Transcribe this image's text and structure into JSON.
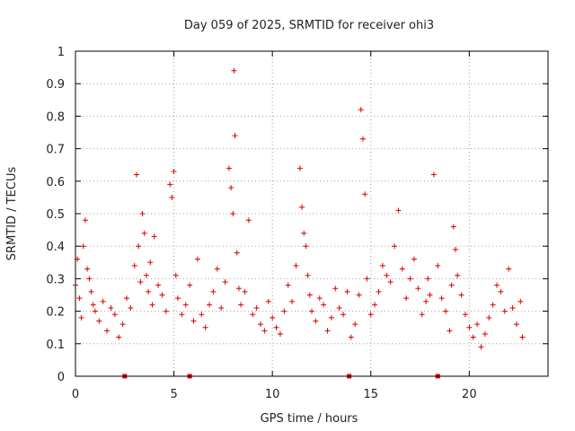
{
  "chart_data": {
    "type": "scatter",
    "title": "Day 059 of 2025, SRMTID for receiver ohi3",
    "xlabel": "GPS time / hours",
    "ylabel": "SRMTID / TECUs",
    "xlim": [
      0,
      24
    ],
    "ylim": [
      0,
      1
    ],
    "xticks": [
      0,
      5,
      10,
      15,
      20
    ],
    "xtick_labels": [
      "0",
      "5",
      "10",
      "15",
      "20"
    ],
    "yticks": [
      0,
      0.1,
      0.2,
      0.3,
      0.4,
      0.5,
      0.6,
      0.7,
      0.8,
      0.9,
      1
    ],
    "ytick_labels": [
      "0",
      "0.1",
      "0.2",
      "0.3",
      "0.4",
      "0.5",
      "0.6",
      "0.7",
      "0.8",
      "0.9",
      "1"
    ],
    "grid": true,
    "marker_color": "#dd0000",
    "series": [
      {
        "name": "SRMTID",
        "marker": "plus",
        "x": [
          0.0,
          0.1,
          0.2,
          0.3,
          0.4,
          0.5,
          0.6,
          0.7,
          0.8,
          0.9,
          1.0,
          1.2,
          1.4,
          1.6,
          1.8,
          2.0,
          2.2,
          2.4,
          2.6,
          2.8,
          3.0,
          3.1,
          3.2,
          3.3,
          3.4,
          3.5,
          3.6,
          3.7,
          3.8,
          3.9,
          4.0,
          4.2,
          4.4,
          4.6,
          4.8,
          4.9,
          5.0,
          5.1,
          5.2,
          5.4,
          5.6,
          5.8,
          6.0,
          6.2,
          6.4,
          6.6,
          6.8,
          7.0,
          7.2,
          7.4,
          7.6,
          7.8,
          7.9,
          8.0,
          8.05,
          8.1,
          8.2,
          8.3,
          8.4,
          8.6,
          8.8,
          9.0,
          9.2,
          9.4,
          9.6,
          9.8,
          10.0,
          10.2,
          10.4,
          10.6,
          10.8,
          11.0,
          11.2,
          11.4,
          11.5,
          11.6,
          11.7,
          11.8,
          11.9,
          12.0,
          12.2,
          12.4,
          12.6,
          12.8,
          13.0,
          13.2,
          13.4,
          13.6,
          13.8,
          14.0,
          14.2,
          14.4,
          14.5,
          14.6,
          14.7,
          14.8,
          15.0,
          15.2,
          15.4,
          15.6,
          15.8,
          16.0,
          16.2,
          16.4,
          16.6,
          16.8,
          17.0,
          17.2,
          17.4,
          17.6,
          17.8,
          17.9,
          18.0,
          18.2,
          18.4,
          18.6,
          18.8,
          19.0,
          19.1,
          19.2,
          19.3,
          19.4,
          19.6,
          19.8,
          20.0,
          20.2,
          20.4,
          20.6,
          20.8,
          21.0,
          21.2,
          21.4,
          21.6,
          21.8,
          22.0,
          22.2,
          22.4,
          22.6,
          22.7
        ],
        "y": [
          0.28,
          0.36,
          0.24,
          0.18,
          0.4,
          0.48,
          0.33,
          0.3,
          0.26,
          0.22,
          0.2,
          0.17,
          0.23,
          0.14,
          0.21,
          0.19,
          0.12,
          0.16,
          0.24,
          0.21,
          0.34,
          0.62,
          0.4,
          0.29,
          0.5,
          0.44,
          0.31,
          0.26,
          0.35,
          0.22,
          0.43,
          0.28,
          0.25,
          0.2,
          0.59,
          0.55,
          0.63,
          0.31,
          0.24,
          0.19,
          0.22,
          0.28,
          0.17,
          0.36,
          0.19,
          0.15,
          0.22,
          0.26,
          0.33,
          0.21,
          0.29,
          0.64,
          0.58,
          0.5,
          0.94,
          0.74,
          0.38,
          0.27,
          0.22,
          0.26,
          0.48,
          0.19,
          0.21,
          0.16,
          0.14,
          0.23,
          0.18,
          0.15,
          0.13,
          0.2,
          0.28,
          0.23,
          0.34,
          0.64,
          0.52,
          0.44,
          0.4,
          0.31,
          0.25,
          0.2,
          0.17,
          0.24,
          0.22,
          0.14,
          0.18,
          0.27,
          0.21,
          0.19,
          0.26,
          0.12,
          0.16,
          0.25,
          0.82,
          0.73,
          0.56,
          0.3,
          0.19,
          0.22,
          0.26,
          0.34,
          0.31,
          0.29,
          0.4,
          0.51,
          0.33,
          0.24,
          0.3,
          0.36,
          0.27,
          0.19,
          0.23,
          0.3,
          0.25,
          0.62,
          0.34,
          0.24,
          0.2,
          0.14,
          0.28,
          0.46,
          0.39,
          0.31,
          0.25,
          0.19,
          0.15,
          0.12,
          0.16,
          0.09,
          0.13,
          0.18,
          0.22,
          0.28,
          0.26,
          0.2,
          0.33,
          0.21,
          0.16,
          0.23,
          0.12
        ],
        "gap_markers_x": [
          2.5,
          5.8,
          13.9,
          18.4
        ]
      }
    ]
  }
}
